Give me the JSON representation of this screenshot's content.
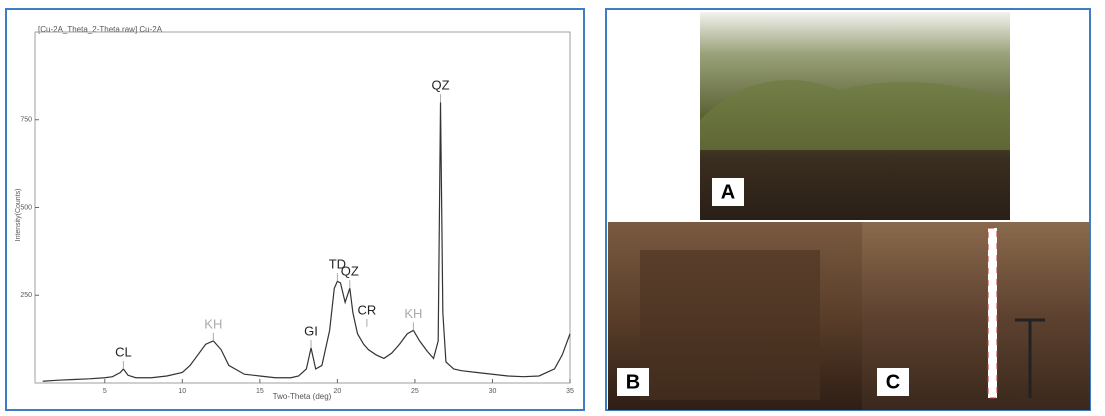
{
  "chart_data": {
    "type": "line",
    "title": "[Cu-2A_Theta_2-Theta.raw] Cu-2A",
    "x_label": "Two-Theta (deg)",
    "y_label": "Intensity(Counts)",
    "x": [
      1,
      2,
      3,
      4,
      5,
      5.5,
      6,
      6.2,
      6.5,
      7,
      8,
      9,
      10,
      10.5,
      11,
      11.5,
      12,
      12.5,
      13,
      14,
      15,
      16,
      17,
      17.5,
      18,
      18.3,
      18.6,
      19,
      19.5,
      19.8,
      20,
      20.2,
      20.5,
      20.8,
      21,
      21.3,
      21.7,
      22,
      22.5,
      23,
      23.5,
      24,
      24.5,
      24.9,
      25.3,
      25.8,
      26.2,
      26.5,
      26.65,
      26.8,
      27,
      27.5,
      28,
      29,
      30,
      31,
      32,
      33,
      34,
      34.5,
      35
    ],
    "values": [
      5,
      8,
      10,
      12,
      15,
      18,
      30,
      40,
      22,
      15,
      15,
      20,
      30,
      50,
      80,
      110,
      120,
      95,
      50,
      25,
      20,
      15,
      15,
      20,
      40,
      100,
      40,
      50,
      150,
      270,
      290,
      285,
      230,
      270,
      200,
      140,
      110,
      95,
      80,
      70,
      85,
      110,
      140,
      150,
      120,
      90,
      70,
      120,
      800,
      200,
      60,
      40,
      35,
      30,
      25,
      20,
      18,
      20,
      40,
      80,
      140
    ],
    "color": "#333333",
    "xlim": [
      0.5,
      35
    ],
    "ylim": [
      0,
      1000
    ],
    "xticks": [
      5,
      10,
      15,
      20,
      25,
      30,
      35
    ],
    "yticks": [
      250,
      500,
      750
    ],
    "annotations": [
      {
        "label": "CL",
        "x": 6.2,
        "y": 40,
        "color": "#222222"
      },
      {
        "label": "KH",
        "x": 12,
        "y": 120,
        "color": "#aaaaaa"
      },
      {
        "label": "GI",
        "x": 18.3,
        "y": 100,
        "color": "#222222"
      },
      {
        "label": "TD",
        "x": 20,
        "y": 290,
        "color": "#222222"
      },
      {
        "label": "QZ",
        "x": 20.8,
        "y": 270,
        "color": "#222222"
      },
      {
        "label": "CR",
        "x": 21.9,
        "y": 160,
        "color": "#222222"
      },
      {
        "label": "KH",
        "x": 24.9,
        "y": 150,
        "color": "#aaaaaa"
      },
      {
        "label": "QZ",
        "x": 26.65,
        "y": 800,
        "color": "#222222"
      }
    ]
  },
  "panels": {
    "labels": [
      "A",
      "B",
      "C"
    ]
  }
}
